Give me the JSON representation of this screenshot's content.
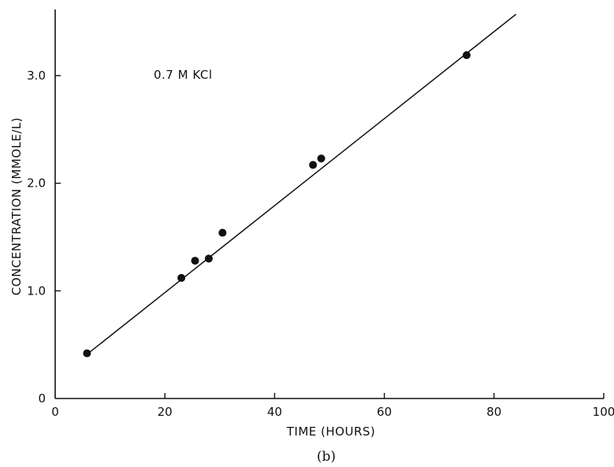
{
  "chart_data": {
    "type": "scatter",
    "title": "",
    "xlabel": "TIME (HOURS)",
    "ylabel": "CONCENTRATION (MMOLE/L)",
    "xlim": [
      0,
      100
    ],
    "ylim": [
      0,
      3.5
    ],
    "x_ticks": [
      0,
      20,
      40,
      60,
      80,
      100
    ],
    "x_tick_labels": [
      "0",
      "20",
      "40",
      "60",
      "80",
      "100"
    ],
    "y_ticks": [
      0,
      1.0,
      2.0,
      3.0
    ],
    "y_tick_labels": [
      "0",
      "1.0",
      "2.0",
      "3.0"
    ],
    "grid": false,
    "annotation": "0.7 M KCl",
    "caption": "(b)",
    "points": [
      {
        "x": 5.8,
        "y": 0.42
      },
      {
        "x": 23.0,
        "y": 1.12
      },
      {
        "x": 25.5,
        "y": 1.28
      },
      {
        "x": 28.0,
        "y": 1.3
      },
      {
        "x": 30.5,
        "y": 1.54
      },
      {
        "x": 47.0,
        "y": 2.17
      },
      {
        "x": 48.5,
        "y": 2.23
      },
      {
        "x": 75.0,
        "y": 3.19
      }
    ],
    "fit_line": {
      "x": [
        5.8,
        84.0
      ],
      "y": [
        0.41,
        3.57
      ]
    }
  }
}
